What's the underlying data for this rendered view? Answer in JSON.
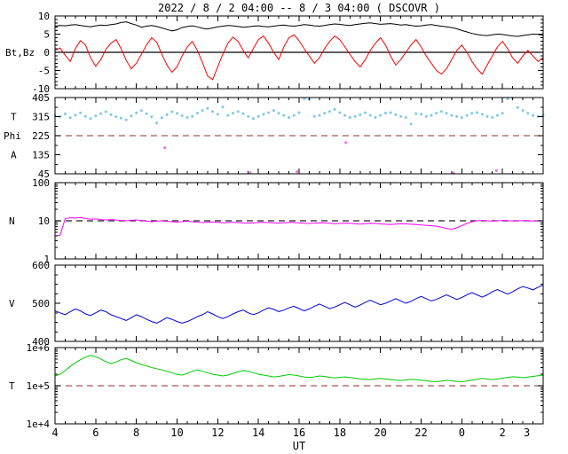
{
  "chart_data": {
    "type": "line",
    "title": "2022 / 8 / 2  04:00 -- 8 / 3  04:00 ( DSCOVR )",
    "xlabel": "UT",
    "x_start_hour_ut": 4,
    "x_range_hours": [
      0,
      24
    ],
    "x_step_hours": 0.25,
    "xticks": [
      {
        "h": 0,
        "label": "4"
      },
      {
        "h": 2,
        "label": "6"
      },
      {
        "h": 4,
        "label": "8"
      },
      {
        "h": 6,
        "label": "10"
      },
      {
        "h": 8,
        "label": "12"
      },
      {
        "h": 10,
        "label": "14"
      },
      {
        "h": 12,
        "label": "16"
      },
      {
        "h": 14,
        "label": "18"
      },
      {
        "h": 16,
        "label": "20"
      },
      {
        "h": 18,
        "label": "22"
      },
      {
        "h": 20,
        "label": "0"
      },
      {
        "h": 22,
        "label": "2"
      },
      {
        "h": 23.2,
        "label": "3"
      }
    ],
    "panels": [
      {
        "id": "mag",
        "scale": "linear",
        "ylim": [
          -10,
          10
        ],
        "yminor_step": 1,
        "yticks": [
          {
            "v": -10,
            "label": "-10"
          },
          {
            "v": -5,
            "label": "-5"
          },
          {
            "v": 0,
            "label": "0"
          },
          {
            "v": 5,
            "label": "5"
          },
          {
            "v": 10,
            "label": "10"
          }
        ],
        "ylabels": [
          {
            "text": "Bt,Bz",
            "v": 0,
            "x": 6
          }
        ],
        "reflines": [
          {
            "v": 0,
            "dash": "",
            "color": "#000000"
          }
        ],
        "series": [
          {
            "name": "Bt",
            "mode": "line",
            "color": "#000000",
            "values": [
              7.2,
              7.4,
              7.3,
              7.5,
              7.6,
              7.4,
              7.2,
              7.0,
              7.3,
              7.5,
              7.4,
              7.6,
              7.8,
              8.2,
              8.4,
              7.9,
              7.5,
              6.9,
              7.2,
              7.4,
              7.1,
              6.7,
              6.3,
              5.9,
              6.2,
              6.8,
              7.1,
              7.3,
              7.0,
              6.6,
              6.4,
              6.7,
              7.0,
              7.2,
              7.4,
              7.3,
              7.1,
              6.9,
              7.0,
              7.2,
              7.3,
              7.1,
              7.0,
              7.2,
              7.4,
              7.5,
              7.3,
              7.2,
              7.4,
              7.6,
              7.5,
              7.3,
              7.2,
              7.4,
              7.6,
              7.8,
              7.7,
              7.5,
              7.4,
              7.6,
              7.8,
              8.0,
              8.1,
              7.9,
              7.7,
              7.8,
              7.9,
              7.7,
              7.5,
              7.6,
              7.4,
              7.2,
              7.3,
              7.5,
              7.6,
              7.4,
              7.2,
              7.0,
              6.8,
              6.5,
              6.0,
              5.6,
              5.2,
              4.9,
              4.7,
              4.6,
              4.8,
              5.0,
              4.9,
              4.7,
              4.5,
              4.4,
              4.6,
              4.8,
              5.0,
              4.9,
              4.7
            ]
          },
          {
            "name": "Bz",
            "mode": "line",
            "color": "#ff0000",
            "values": [
              0.5,
              1.2,
              -0.8,
              -2.5,
              1.0,
              3.2,
              2.0,
              -1.5,
              -3.8,
              -2.0,
              0.8,
              2.5,
              3.5,
              1.0,
              -2.2,
              -4.5,
              -3.0,
              -0.5,
              2.0,
              4.0,
              2.8,
              -0.5,
              -3.5,
              -5.5,
              -4.0,
              -1.0,
              1.5,
              3.0,
              0.5,
              -2.8,
              -6.5,
              -7.5,
              -4.0,
              -0.5,
              2.5,
              4.2,
              3.0,
              0.5,
              -1.5,
              1.0,
              3.5,
              4.5,
              2.5,
              0.0,
              -2.0,
              1.5,
              4.0,
              4.8,
              3.2,
              1.0,
              -1.0,
              -3.0,
              -1.5,
              1.0,
              3.0,
              4.5,
              3.5,
              1.5,
              -0.5,
              -2.5,
              -4.0,
              -2.0,
              0.5,
              2.5,
              4.0,
              2.0,
              -1.0,
              -3.5,
              -2.0,
              0.0,
              2.0,
              3.5,
              1.5,
              -1.0,
              -3.0,
              -5.0,
              -6.0,
              -4.5,
              -2.0,
              0.5,
              2.0,
              0.0,
              -2.5,
              -4.5,
              -6.0,
              -3.5,
              -1.0,
              1.5,
              3.0,
              1.0,
              -1.5,
              -3.0,
              -1.0,
              0.5,
              -1.0,
              -2.5,
              -1.5
            ]
          }
        ]
      },
      {
        "id": "phi",
        "scale": "linear",
        "ylim": [
          45,
          405
        ],
        "yminor_step": 45,
        "yticks": [
          {
            "v": 45,
            "label": "45"
          },
          {
            "v": 135,
            "label": "135"
          },
          {
            "v": 225,
            "label": "225"
          },
          {
            "v": 315,
            "label": "315"
          },
          {
            "v": 405,
            "label": "405"
          }
        ],
        "ylabels": [
          {
            "text": "T",
            "v": 315,
            "x": 12
          },
          {
            "text": "Phi",
            "v": 225,
            "x": 4
          },
          {
            "text": "A",
            "v": 135,
            "x": 12
          }
        ],
        "reflines": [
          {
            "v": 225,
            "dash": "7,5",
            "color": "#aa5555"
          }
        ],
        "series": [
          {
            "name": "Phi",
            "mode": "scatter",
            "color": "#7ec8e8",
            "values": [
              320,
              315,
              328,
              310,
              322,
              333,
              316,
              306,
              318,
              329,
              338,
              324,
              314,
              308,
              300,
              318,
              333,
              344,
              329,
              314,
              285,
              309,
              324,
              338,
              330,
              319,
              311,
              316,
              331,
              344,
              354,
              339,
              326,
              360,
              321,
              331,
              339,
              329,
              316,
              306,
              316,
              326,
              334,
              344,
              331,
              321,
              311,
              321,
              334,
              400,
              396,
              316,
              321,
              331,
              339,
              349,
              334,
              321,
              311,
              316,
              324,
              334,
              321,
              311,
              321,
              331,
              334,
              324,
              316,
              311,
              280,
              329,
              326,
              316,
              321,
              331,
              339,
              331,
              321,
              316,
              311,
              321,
              331,
              334,
              326,
              316,
              311,
              321,
              331,
              398,
              402,
              358,
              344,
              331,
              321,
              316,
              321
            ]
          }
        ],
        "extra_scatter": {
          "name": "flagged-points",
          "color": "#ee77ee",
          "points": [
            [
              5.4,
              168
            ],
            [
              9.6,
              50
            ],
            [
              11.9,
              55
            ],
            [
              14.3,
              192
            ],
            [
              19.6,
              48
            ],
            [
              21.7,
              60
            ]
          ]
        }
      },
      {
        "id": "density",
        "scale": "log",
        "ylim": [
          1,
          100
        ],
        "yticks": [
          {
            "v": 1,
            "label": "1"
          },
          {
            "v": 10,
            "label": "10"
          },
          {
            "v": 100,
            "label": "100"
          }
        ],
        "ylabels": [
          {
            "text": "N",
            "v": 10,
            "x": 10
          }
        ],
        "reflines": [
          {
            "v": 10,
            "dash": "7,5",
            "color": "#222222"
          }
        ],
        "series": [
          {
            "name": "N",
            "mode": "line",
            "color": "#ff00ff",
            "values": [
              4.0,
              4.2,
              11.5,
              12.0,
              11.8,
              12.2,
              11.5,
              11.0,
              11.2,
              10.8,
              10.5,
              10.8,
              10.5,
              10.2,
              10.0,
              10.3,
              10.5,
              10.2,
              9.8,
              9.5,
              9.8,
              10.0,
              9.7,
              9.5,
              9.3,
              9.5,
              9.8,
              9.5,
              9.2,
              9.0,
              9.2,
              9.4,
              9.1,
              8.9,
              9.0,
              9.2,
              9.0,
              8.8,
              8.6,
              8.8,
              9.0,
              9.2,
              9.0,
              8.8,
              8.7,
              8.9,
              9.1,
              9.0,
              8.8,
              8.6,
              8.5,
              8.7,
              8.9,
              8.8,
              8.6,
              8.4,
              8.5,
              8.7,
              8.6,
              8.4,
              8.2,
              8.4,
              8.6,
              8.5,
              8.3,
              8.1,
              8.0,
              8.2,
              8.4,
              8.3,
              8.1,
              8.0,
              7.8,
              7.6,
              7.4,
              7.2,
              6.8,
              6.3,
              6.0,
              6.5,
              7.5,
              8.5,
              9.5,
              10.0,
              10.2,
              10.0,
              9.8,
              10.0,
              10.2,
              10.1,
              9.9,
              10.0,
              10.1,
              10.0,
              9.9,
              10.0,
              10.1
            ]
          }
        ]
      },
      {
        "id": "speed",
        "scale": "linear",
        "ylim": [
          400,
          600
        ],
        "yminor_step": 25,
        "yticks": [
          {
            "v": 400,
            "label": "400"
          },
          {
            "v": 500,
            "label": "500"
          },
          {
            "v": 600,
            "label": "600"
          }
        ],
        "ylabels": [
          {
            "text": "V",
            "v": 500,
            "x": 10
          }
        ],
        "reflines": [],
        "series": [
          {
            "name": "V",
            "mode": "line",
            "color": "#0000dd",
            "values": [
              480,
              475,
              470,
              478,
              485,
              480,
              472,
              468,
              475,
              482,
              478,
              470,
              465,
              460,
              455,
              462,
              470,
              465,
              458,
              452,
              448,
              455,
              462,
              458,
              452,
              448,
              452,
              458,
              465,
              470,
              478,
              472,
              465,
              460,
              465,
              472,
              478,
              482,
              475,
              470,
              475,
              482,
              488,
              484,
              478,
              482,
              488,
              492,
              486,
              480,
              485,
              492,
              498,
              492,
              486,
              490,
              496,
              502,
              496,
              490,
              495,
              502,
              508,
              502,
              496,
              500,
              506,
              512,
              506,
              500,
              505,
              512,
              518,
              512,
              506,
              510,
              516,
              522,
              516,
              510,
              515,
              522,
              528,
              522,
              516,
              522,
              530,
              536,
              530,
              524,
              530,
              538,
              544,
              540,
              535,
              542,
              548
            ]
          }
        ]
      },
      {
        "id": "temp",
        "scale": "log",
        "ylim": [
          10000,
          1000000
        ],
        "yticks": [
          {
            "v": 10000,
            "label": "1e+4"
          },
          {
            "v": 100000,
            "label": "1e+5"
          },
          {
            "v": 1000000,
            "label": "1e+6"
          }
        ],
        "ylabels": [
          {
            "text": "T",
            "v": 100000,
            "x": 10
          }
        ],
        "reflines": [
          {
            "v": 100000,
            "dash": "7,5",
            "color": "#aa5555"
          }
        ],
        "series": [
          {
            "name": "T",
            "mode": "line",
            "color": "#00cc00",
            "values": [
              180000,
              200000,
              250000,
              320000,
              400000,
              480000,
              560000,
              620000,
              580000,
              500000,
              430000,
              380000,
              420000,
              480000,
              520000,
              460000,
              400000,
              360000,
              330000,
              300000,
              280000,
              260000,
              240000,
              220000,
              200000,
              190000,
              210000,
              240000,
              260000,
              240000,
              220000,
              200000,
              190000,
              180000,
              190000,
              210000,
              230000,
              250000,
              240000,
              220000,
              200000,
              190000,
              180000,
              170000,
              175000,
              185000,
              195000,
              190000,
              180000,
              170000,
              165000,
              170000,
              180000,
              175000,
              165000,
              160000,
              165000,
              170000,
              165000,
              158000,
              152000,
              148000,
              145000,
              150000,
              155000,
              150000,
              145000,
              140000,
              138000,
              142000,
              148000,
              145000,
              140000,
              135000,
              130000,
              128000,
              132000,
              138000,
              135000,
              130000,
              128000,
              132000,
              140000,
              148000,
              155000,
              150000,
              145000,
              150000,
              158000,
              165000,
              172000,
              168000,
              162000,
              168000,
              175000,
              182000,
              190000
            ]
          }
        ]
      }
    ]
  }
}
